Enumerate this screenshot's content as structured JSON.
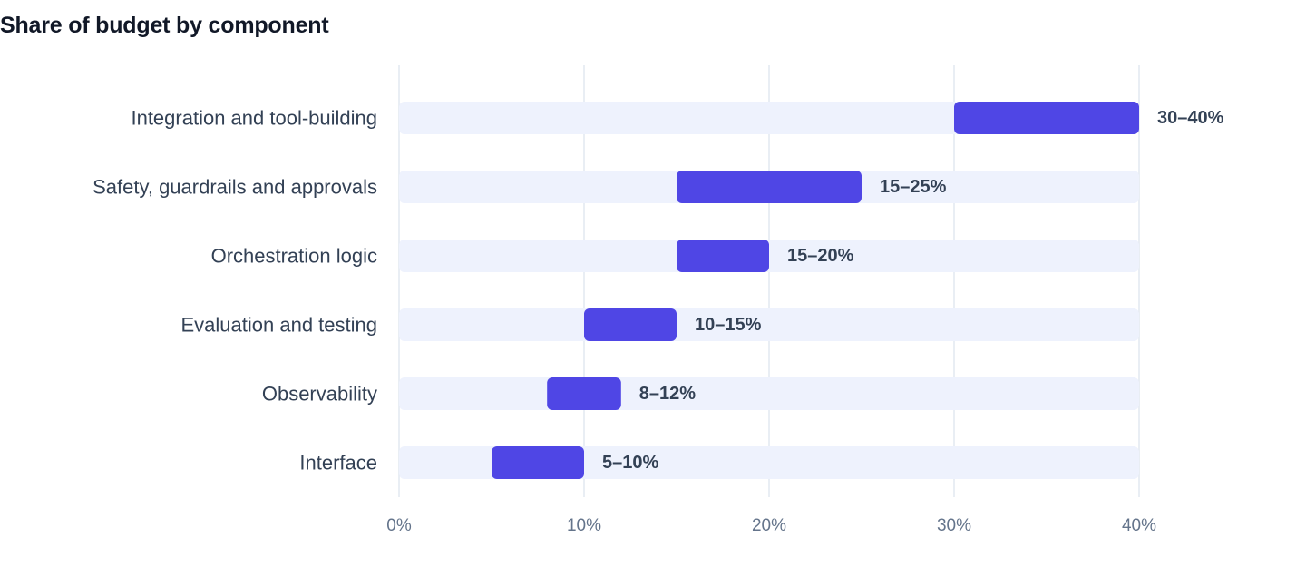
{
  "chart_data": {
    "type": "bar",
    "title": "Share of budget by component",
    "xlabel": "",
    "ylabel": "",
    "orientation": "horizontal",
    "bar_style": "range",
    "xlim": [
      0,
      40
    ],
    "x_ticks": [
      0,
      10,
      20,
      30,
      40
    ],
    "x_tick_labels": [
      "0%",
      "10%",
      "20%",
      "30%",
      "40%"
    ],
    "grid": "vertical",
    "categories": [
      "Integration and tool-building",
      "Safety, guardrails and approvals",
      "Orchestration logic",
      "Evaluation and testing",
      "Observability",
      "Interface"
    ],
    "series": [
      {
        "ranges": [
          [
            30,
            40
          ],
          [
            15,
            25
          ],
          [
            15,
            20
          ],
          [
            10,
            15
          ],
          [
            8,
            12
          ],
          [
            5,
            10
          ]
        ],
        "labels": [
          "30–40%",
          "15–25%",
          "15–20%",
          "10–15%",
          "8–12%",
          "5–10%"
        ]
      }
    ],
    "colors": {
      "range_bar": "#4f46e5",
      "track": "#eef2fd",
      "grid": "#e2e8f0"
    }
  }
}
